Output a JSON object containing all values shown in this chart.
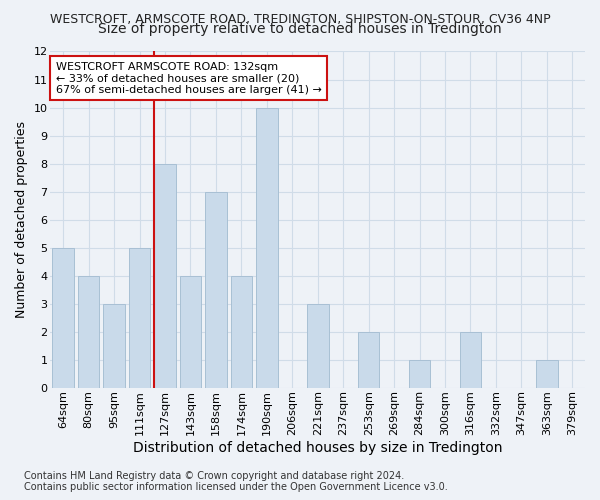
{
  "title_line1": "WESTCROFT, ARMSCOTE ROAD, TREDINGTON, SHIPSTON-ON-STOUR, CV36 4NP",
  "title_line2": "Size of property relative to detached houses in Tredington",
  "xlabel": "Distribution of detached houses by size in Tredington",
  "ylabel": "Number of detached properties",
  "categories": [
    "64sqm",
    "80sqm",
    "95sqm",
    "111sqm",
    "127sqm",
    "143sqm",
    "158sqm",
    "174sqm",
    "190sqm",
    "206sqm",
    "221sqm",
    "237sqm",
    "253sqm",
    "269sqm",
    "284sqm",
    "300sqm",
    "316sqm",
    "332sqm",
    "347sqm",
    "363sqm",
    "379sqm"
  ],
  "values": [
    5,
    4,
    3,
    5,
    8,
    4,
    7,
    4,
    10,
    0,
    3,
    0,
    2,
    0,
    1,
    0,
    2,
    0,
    0,
    1,
    0
  ],
  "bar_color": "#c9daea",
  "bar_edge_color": "#a8c0d4",
  "reference_line_color": "#cc1111",
  "annotation_text": "WESTCROFT ARMSCOTE ROAD: 132sqm\n← 33% of detached houses are smaller (20)\n67% of semi-detached houses are larger (41) →",
  "annotation_box_facecolor": "#ffffff",
  "annotation_box_edgecolor": "#cc1111",
  "ylim": [
    0,
    12
  ],
  "yticks": [
    0,
    1,
    2,
    3,
    4,
    5,
    6,
    7,
    8,
    9,
    10,
    11,
    12
  ],
  "grid_color": "#d0dce8",
  "footer_line1": "Contains HM Land Registry data © Crown copyright and database right 2024.",
  "footer_line2": "Contains public sector information licensed under the Open Government Licence v3.0.",
  "background_color": "#eef2f7",
  "title1_fontsize": 9,
  "title2_fontsize": 10,
  "ylabel_fontsize": 9,
  "xlabel_fontsize": 10,
  "tick_fontsize": 8,
  "annot_fontsize": 8,
  "footer_fontsize": 7
}
